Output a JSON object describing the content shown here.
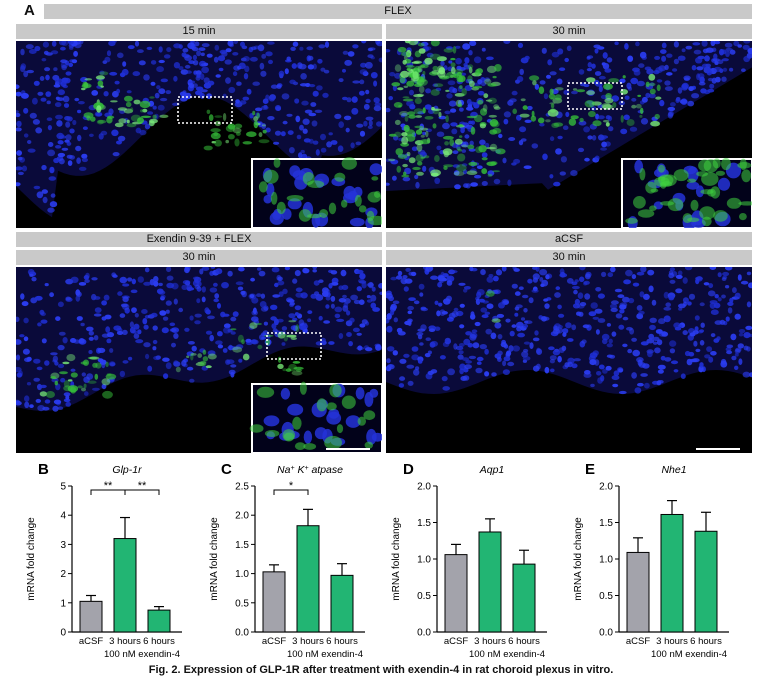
{
  "panel_a": {
    "letter": "A",
    "header": "FLEX",
    "top_left_label": "15 min",
    "top_right_label": "30 min",
    "left_group_label": "Exendin 9-39 + FLEX",
    "left_group_sub": "30 min",
    "right_group_label": "aCSF",
    "right_group_sub": "30 min"
  },
  "charts": [
    {
      "letter": "B",
      "title": "Glp-1r",
      "ylabel": "mRNA fold change",
      "ylim": [
        0,
        5
      ],
      "yticks": [
        "0",
        "1",
        "2",
        "3",
        "4",
        "5"
      ],
      "categories": [
        "aCSF",
        "3 hours",
        "6 hours"
      ],
      "values": [
        1.05,
        3.2,
        0.75
      ],
      "errors": [
        0.2,
        0.72,
        0.12
      ],
      "colors": [
        "#a3a3ab",
        "#22b573",
        "#22b573"
      ],
      "group_label": "100 nM exendin-4",
      "sig": [
        {
          "from": 0,
          "to": 1,
          "label": "**"
        },
        {
          "from": 1,
          "to": 2,
          "label": "**"
        }
      ]
    },
    {
      "letter": "C",
      "title": "Na+ K+ atpase",
      "ylabel": "mRNA fold change",
      "ylim": [
        0,
        2.5
      ],
      "yticks": [
        "0.0",
        "0.5",
        "1.0",
        "1.5",
        "2.0",
        "2.5"
      ],
      "categories": [
        "aCSF",
        "3 hours",
        "6 hours"
      ],
      "values": [
        1.03,
        1.82,
        0.97
      ],
      "errors": [
        0.12,
        0.28,
        0.2
      ],
      "colors": [
        "#a3a3ab",
        "#22b573",
        "#22b573"
      ],
      "group_label": "100 nM exendin-4",
      "sig": [
        {
          "from": 0,
          "to": 1,
          "label": "*"
        }
      ]
    },
    {
      "letter": "D",
      "title": "Aqp1",
      "ylabel": "mRNA fold change",
      "ylim": [
        0,
        2.0
      ],
      "yticks": [
        "0.0",
        "0.5",
        "1.0",
        "1.5",
        "2.0"
      ],
      "categories": [
        "aCSF",
        "3 hours",
        "6 hours"
      ],
      "values": [
        1.06,
        1.37,
        0.93
      ],
      "errors": [
        0.14,
        0.18,
        0.19
      ],
      "colors": [
        "#a3a3ab",
        "#22b573",
        "#22b573"
      ],
      "group_label": "100 nM exendin-4",
      "sig": []
    },
    {
      "letter": "E",
      "title": "Nhe1",
      "ylabel": "mRNA fold change",
      "ylim": [
        0,
        2.0
      ],
      "yticks": [
        "0.0",
        "0.5",
        "1.0",
        "1.5",
        "2.0"
      ],
      "categories": [
        "aCSF",
        "3 hours",
        "6 hours"
      ],
      "values": [
        1.09,
        1.61,
        1.38
      ],
      "errors": [
        0.2,
        0.19,
        0.26
      ],
      "colors": [
        "#a3a3ab",
        "#22b573",
        "#22b573"
      ],
      "group_label": "100 nM exendin-4",
      "sig": []
    }
  ],
  "caption": "Fig. 2. Expression of GLP-1R after treatment with exendin-4 in rat choroid plexus in vitro."
}
